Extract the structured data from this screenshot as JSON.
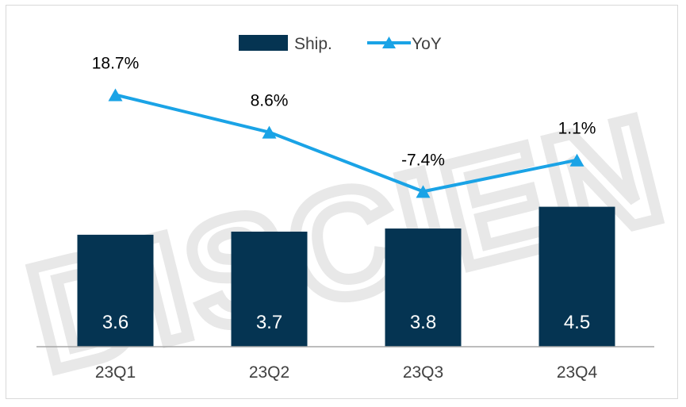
{
  "colors": {
    "bar": "#053452",
    "line": "#1aa3e6",
    "axis": "#a6a6a6",
    "watermark": "#e8e8e8"
  },
  "watermark": {
    "text": "DISCIEN"
  },
  "legend": {
    "position": "top-center",
    "items": [
      {
        "label": "Ship.",
        "icon": "bar-swatch-icon"
      },
      {
        "label": "YoY",
        "icon": "line-triangle-marker-icon"
      }
    ]
  },
  "chart_data": {
    "type": "bar",
    "categories": [
      "23Q1",
      "23Q2",
      "23Q3",
      "23Q4"
    ],
    "series": [
      {
        "name": "Ship.",
        "type": "bar",
        "values": [
          3.6,
          3.7,
          3.8,
          4.5
        ],
        "data_labels": [
          "3.6",
          "3.7",
          "3.8",
          "4.5"
        ]
      },
      {
        "name": "YoY",
        "type": "line",
        "marker": "triangle",
        "values": [
          18.7,
          8.6,
          -7.4,
          1.1
        ],
        "data_labels": [
          "18.7%",
          "8.6%",
          "-7.4%",
          "1.1%"
        ]
      }
    ],
    "grid": false,
    "xlabel": "",
    "ylabel": ""
  }
}
